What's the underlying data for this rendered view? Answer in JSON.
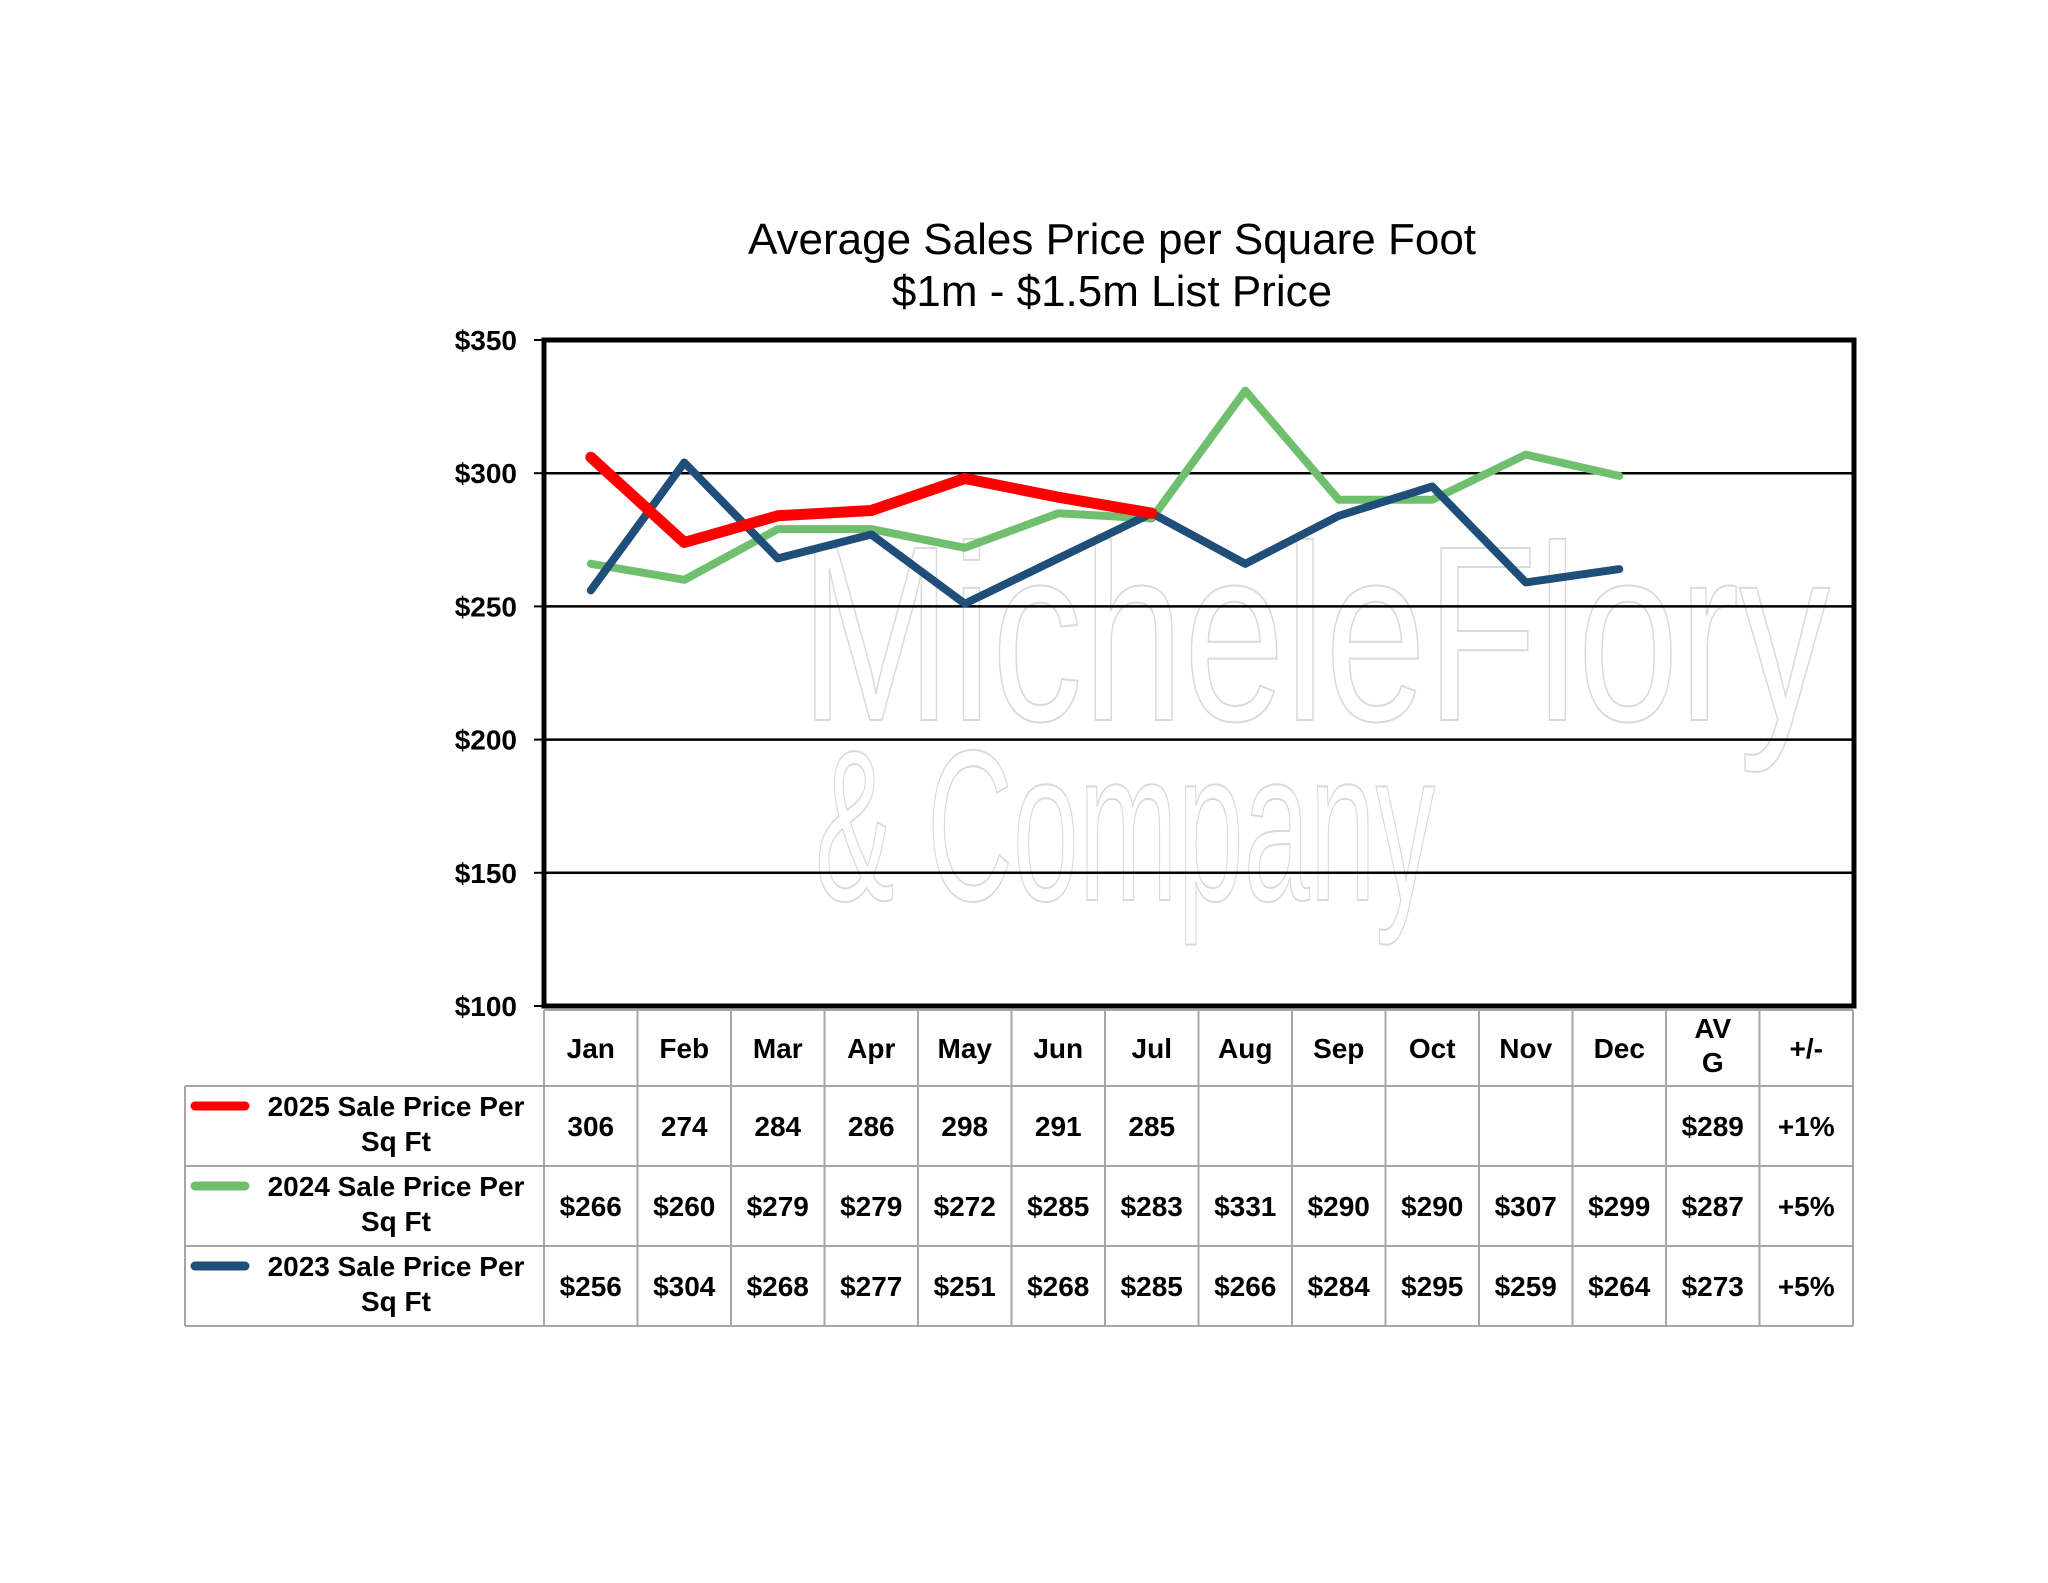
{
  "chart_data": {
    "type": "line",
    "title": "Average Sales Price per Square Foot",
    "subtitle": "$1m - $1.5m List Price",
    "categories": [
      "Jan",
      "Feb",
      "Mar",
      "Apr",
      "May",
      "Jun",
      "Jul",
      "Aug",
      "Sep",
      "Oct",
      "Nov",
      "Dec"
    ],
    "y_ticks": [
      "$350",
      "$300",
      "$250",
      "$200",
      "$150",
      "$100"
    ],
    "ylim": [
      100,
      350
    ],
    "y_step": 50,
    "grid": true,
    "series": [
      {
        "name": "2025 Sale Price Per Sq Ft",
        "color": "#ff0000",
        "values": [
          306,
          274,
          284,
          286,
          298,
          291,
          285,
          null,
          null,
          null,
          null,
          null
        ],
        "table": [
          "306",
          "274",
          "284",
          "286",
          "298",
          "291",
          "285",
          "",
          "",
          "",
          "",
          ""
        ],
        "avg": "$289",
        "change": "+1%"
      },
      {
        "name": "2024 Sale Price Per Sq Ft",
        "color": "#70bf6e",
        "values": [
          266,
          260,
          279,
          279,
          272,
          285,
          283,
          331,
          290,
          290,
          307,
          299
        ],
        "table": [
          "$266",
          "$260",
          "$279",
          "$279",
          "$272",
          "$285",
          "$283",
          "$331",
          "$290",
          "$290",
          "$307",
          "$299"
        ],
        "avg": "$287",
        "change": "+5%"
      },
      {
        "name": "2023 Sale Price Per Sq Ft",
        "color": "#1f4e79",
        "values": [
          256,
          304,
          268,
          277,
          251,
          268,
          285,
          266,
          284,
          295,
          259,
          264
        ],
        "table": [
          "$256",
          "$304",
          "$268",
          "$277",
          "$251",
          "$268",
          "$285",
          "$266",
          "$284",
          "$295",
          "$259",
          "$264"
        ],
        "avg": "$273",
        "change": "+5%"
      }
    ],
    "table_headers": {
      "avg": "AVG",
      "change": "+/-"
    }
  },
  "watermark": {
    "line1": "MicheleFlory",
    "line2": "& Company"
  }
}
